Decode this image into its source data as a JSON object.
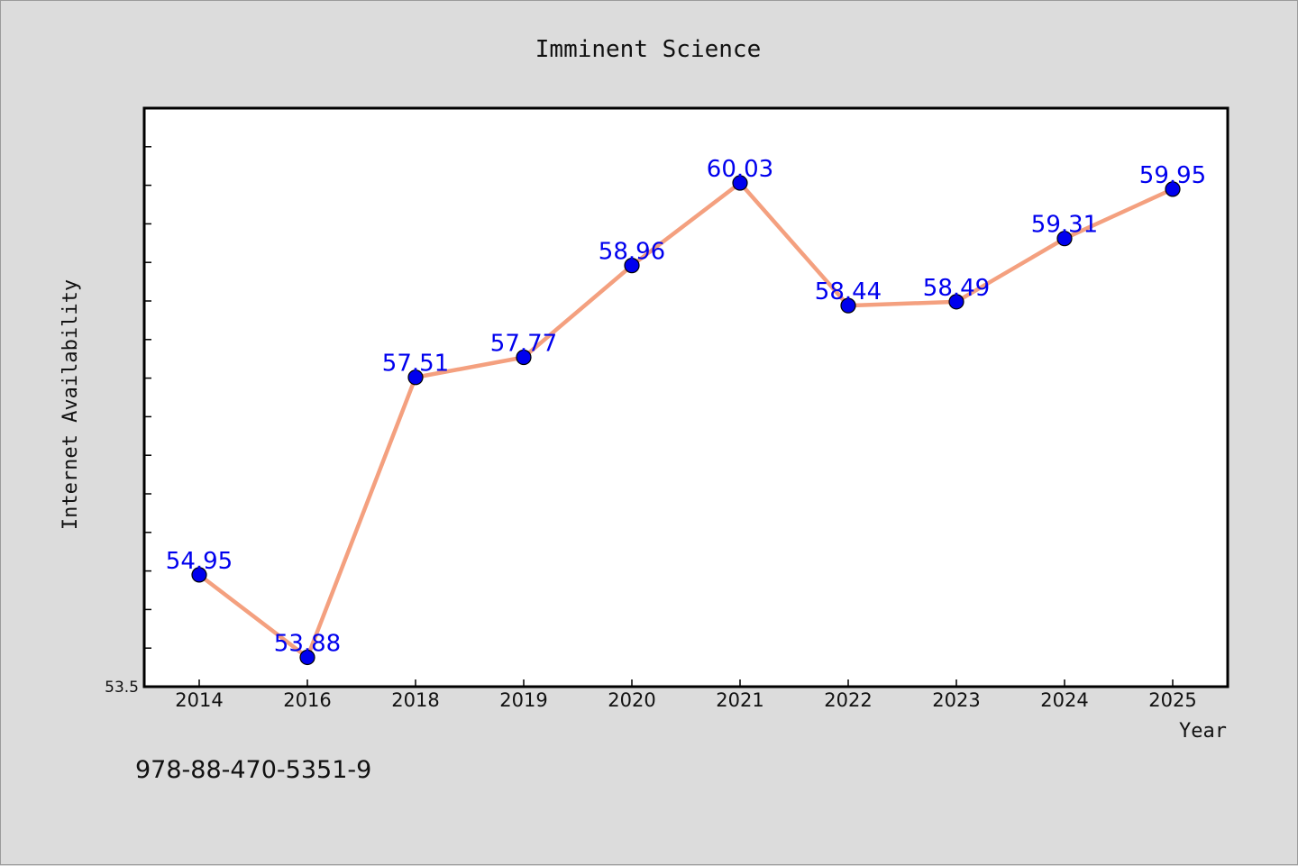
{
  "chart_data": {
    "type": "line",
    "title": "Imminent Science",
    "xlabel": "Year",
    "ylabel": "Internet Availability",
    "categories": [
      "2014",
      "2016",
      "2018",
      "2019",
      "2020",
      "2021",
      "2022",
      "2023",
      "2024",
      "2025"
    ],
    "series": [
      {
        "values": [
          54.95,
          53.88,
          57.51,
          57.77,
          58.96,
          60.03,
          58.44,
          58.49,
          59.31,
          59.95
        ],
        "labels": [
          "54.95",
          "53.88",
          "57.51",
          "57.77",
          "58.96",
          "60.03",
          "58.44",
          "58.49",
          "59.31",
          "59.95"
        ],
        "line_color": "#f4a07f",
        "marker_color": "#0000ee",
        "label_color": "#0000ee"
      }
    ],
    "ylim": [
      53.5,
      61.0
    ],
    "y_tick_labels": [
      "53.5"
    ],
    "grid": false,
    "legend": "none",
    "background": "#dcdcdc",
    "plot_background": "#ffffff"
  },
  "footer": {
    "isbn": "978-88-470-5351-9"
  }
}
